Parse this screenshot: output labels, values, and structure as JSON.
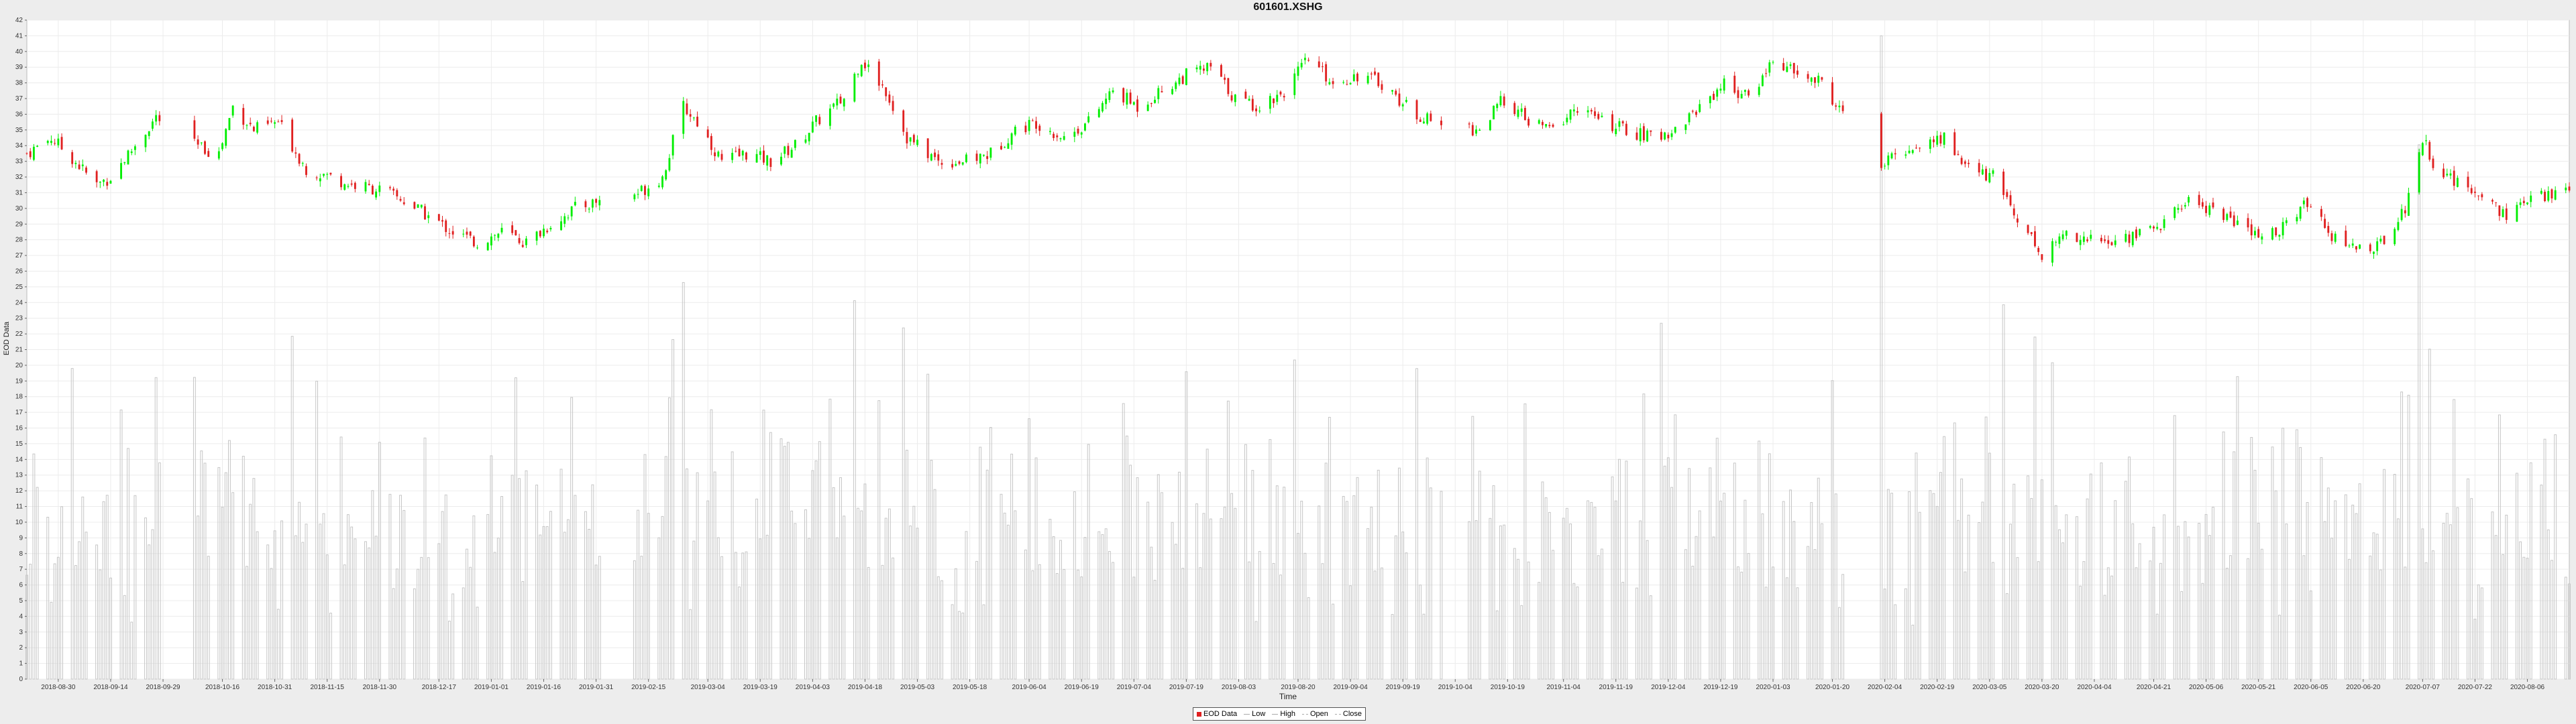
{
  "window_title": "601601.XSHG",
  "chart_data": {
    "type": "candlestick",
    "title": "601601.XSHG",
    "xlabel": "Time",
    "ylabel": "EOD Data",
    "ylim": [
      0,
      42
    ],
    "y_ticks": [
      0,
      1,
      2,
      3,
      4,
      5,
      6,
      7,
      8,
      9,
      10,
      11,
      12,
      13,
      14,
      15,
      16,
      17,
      18,
      19,
      20,
      21,
      22,
      23,
      24,
      25,
      26,
      27,
      28,
      29,
      30,
      31,
      32,
      33,
      34,
      35,
      36,
      37,
      38,
      39,
      40,
      41,
      42
    ],
    "x_range": [
      "2018-08-21",
      "2020-08-18"
    ],
    "x_ticks": [
      "2018-08-30",
      "2018-09-14",
      "2018-09-29",
      "2018-10-16",
      "2018-10-31",
      "2018-11-15",
      "2018-11-30",
      "2018-12-17",
      "2019-01-01",
      "2019-01-16",
      "2019-01-31",
      "2019-02-15",
      "2019-03-04",
      "2019-03-19",
      "2019-04-03",
      "2019-04-18",
      "2019-05-03",
      "2019-05-18",
      "2019-06-04",
      "2019-06-19",
      "2019-07-04",
      "2019-07-19",
      "2019-08-03",
      "2019-08-20",
      "2019-09-04",
      "2019-09-19",
      "2019-10-04",
      "2019-10-19",
      "2019-11-04",
      "2019-11-19",
      "2019-12-04",
      "2019-12-19",
      "2020-01-03",
      "2020-01-20",
      "2020-02-04",
      "2020-02-19",
      "2020-03-05",
      "2020-03-20",
      "2020-04-04",
      "2020-04-21",
      "2020-05-06",
      "2020-05-21",
      "2020-06-05",
      "2020-06-20",
      "2020-07-07",
      "2020-07-22",
      "2020-08-06"
    ],
    "close_points": [
      [
        "2018-08-21",
        33.5
      ],
      [
        "2018-08-28",
        34.5
      ],
      [
        "2018-09-03",
        33.2
      ],
      [
        "2018-09-10",
        31.5
      ],
      [
        "2018-09-14",
        32.0
      ],
      [
        "2018-09-21",
        34.0
      ],
      [
        "2018-09-27",
        35.8
      ],
      [
        "2018-10-08",
        34.0
      ],
      [
        "2018-10-15",
        33.5
      ],
      [
        "2018-10-19",
        36.5
      ],
      [
        "2018-10-25",
        35.0
      ],
      [
        "2018-11-01",
        35.5
      ],
      [
        "2018-11-09",
        32.5
      ],
      [
        "2018-11-16",
        32.0
      ],
      [
        "2018-11-22",
        31.5
      ],
      [
        "2018-11-30",
        31.2
      ],
      [
        "2018-12-07",
        30.5
      ],
      [
        "2018-12-14",
        29.5
      ],
      [
        "2018-12-21",
        28.5
      ],
      [
        "2018-12-28",
        27.8
      ],
      [
        "2019-01-04",
        28.5
      ],
      [
        "2019-01-11",
        27.8
      ],
      [
        "2019-01-18",
        29.0
      ],
      [
        "2019-01-25",
        30.0
      ],
      [
        "2019-02-01",
        30.5
      ],
      [
        "2019-02-12",
        31.0
      ],
      [
        "2019-02-19",
        32.0
      ],
      [
        "2019-02-25",
        36.5
      ],
      [
        "2019-03-01",
        35.5
      ],
      [
        "2019-03-08",
        33.0
      ],
      [
        "2019-03-15",
        33.5
      ],
      [
        "2019-03-22",
        33.0
      ],
      [
        "2019-03-29",
        34.0
      ],
      [
        "2019-04-04",
        35.5
      ],
      [
        "2019-04-12",
        37.0
      ],
      [
        "2019-04-17",
        39.5
      ],
      [
        "2019-04-24",
        37.5
      ],
      [
        "2019-04-30",
        34.5
      ],
      [
        "2019-05-09",
        33.0
      ],
      [
        "2019-05-17",
        33.0
      ],
      [
        "2019-05-24",
        33.5
      ],
      [
        "2019-05-31",
        35.0
      ],
      [
        "2019-06-06",
        35.5
      ],
      [
        "2019-06-14",
        34.5
      ],
      [
        "2019-06-21",
        35.5
      ],
      [
        "2019-06-28",
        37.5
      ],
      [
        "2019-07-05",
        36.5
      ],
      [
        "2019-07-12",
        37.5
      ],
      [
        "2019-07-19",
        38.5
      ],
      [
        "2019-07-26",
        39.0
      ],
      [
        "2019-08-02",
        37.0
      ],
      [
        "2019-08-09",
        36.5
      ],
      [
        "2019-08-16",
        37.5
      ],
      [
        "2019-08-23",
        39.5
      ],
      [
        "2019-08-30",
        38.0
      ],
      [
        "2019-09-06",
        38.5
      ],
      [
        "2019-09-13",
        38.0
      ],
      [
        "2019-09-20",
        36.5
      ],
      [
        "2019-09-27",
        35.5
      ],
      [
        "2019-10-11",
        35.0
      ],
      [
        "2019-10-18",
        37.0
      ],
      [
        "2019-10-25",
        35.5
      ],
      [
        "2019-11-01",
        35.0
      ],
      [
        "2019-11-08",
        36.5
      ],
      [
        "2019-11-15",
        35.5
      ],
      [
        "2019-11-22",
        35.0
      ],
      [
        "2019-11-29",
        34.5
      ],
      [
        "2019-12-06",
        35.0
      ],
      [
        "2019-12-13",
        36.5
      ],
      [
        "2019-12-20",
        38.0
      ],
      [
        "2019-12-27",
        37.0
      ],
      [
        "2020-01-03",
        39.5
      ],
      [
        "2020-01-10",
        38.5
      ],
      [
        "2020-01-17",
        38.0
      ],
      [
        "2020-01-23",
        36.0
      ],
      [
        "2020-02-03",
        32.5
      ],
      [
        "2020-02-07",
        33.5
      ],
      [
        "2020-02-14",
        34.0
      ],
      [
        "2020-02-21",
        34.5
      ],
      [
        "2020-02-28",
        32.5
      ],
      [
        "2020-03-06",
        32.0
      ],
      [
        "2020-03-13",
        29.5
      ],
      [
        "2020-03-20",
        27.0
      ],
      [
        "2020-03-27",
        28.5
      ],
      [
        "2020-04-03",
        28.0
      ],
      [
        "2020-04-10",
        27.8
      ],
      [
        "2020-04-17",
        28.5
      ],
      [
        "2020-04-24",
        29.0
      ],
      [
        "2020-04-30",
        30.5
      ],
      [
        "2020-05-08",
        30.0
      ],
      [
        "2020-05-15",
        29.0
      ],
      [
        "2020-05-22",
        28.0
      ],
      [
        "2020-05-29",
        29.0
      ],
      [
        "2020-06-05",
        30.5
      ],
      [
        "2020-06-12",
        28.0
      ],
      [
        "2020-06-19",
        27.5
      ],
      [
        "2020-06-24",
        27.5
      ],
      [
        "2020-07-02",
        30.0
      ],
      [
        "2020-07-07",
        34.5
      ],
      [
        "2020-07-10",
        33.0
      ],
      [
        "2020-07-17",
        31.5
      ],
      [
        "2020-07-24",
        31.0
      ],
      [
        "2020-07-31",
        29.5
      ],
      [
        "2020-08-07",
        30.5
      ],
      [
        "2020-08-14",
        31.0
      ],
      [
        "2020-08-18",
        31.3
      ]
    ],
    "volume_scale": 1e-06,
    "legend": {
      "position": "bottom-center",
      "entries": [
        "EOD Data",
        "Low",
        "High",
        "Open",
        "Close"
      ]
    },
    "colors": {
      "up": "#00ee00",
      "down": "#e02020",
      "volume": "#c6c6c6",
      "grid": "#ececec",
      "plot_bg": "#ffffff"
    },
    "grid": true
  }
}
